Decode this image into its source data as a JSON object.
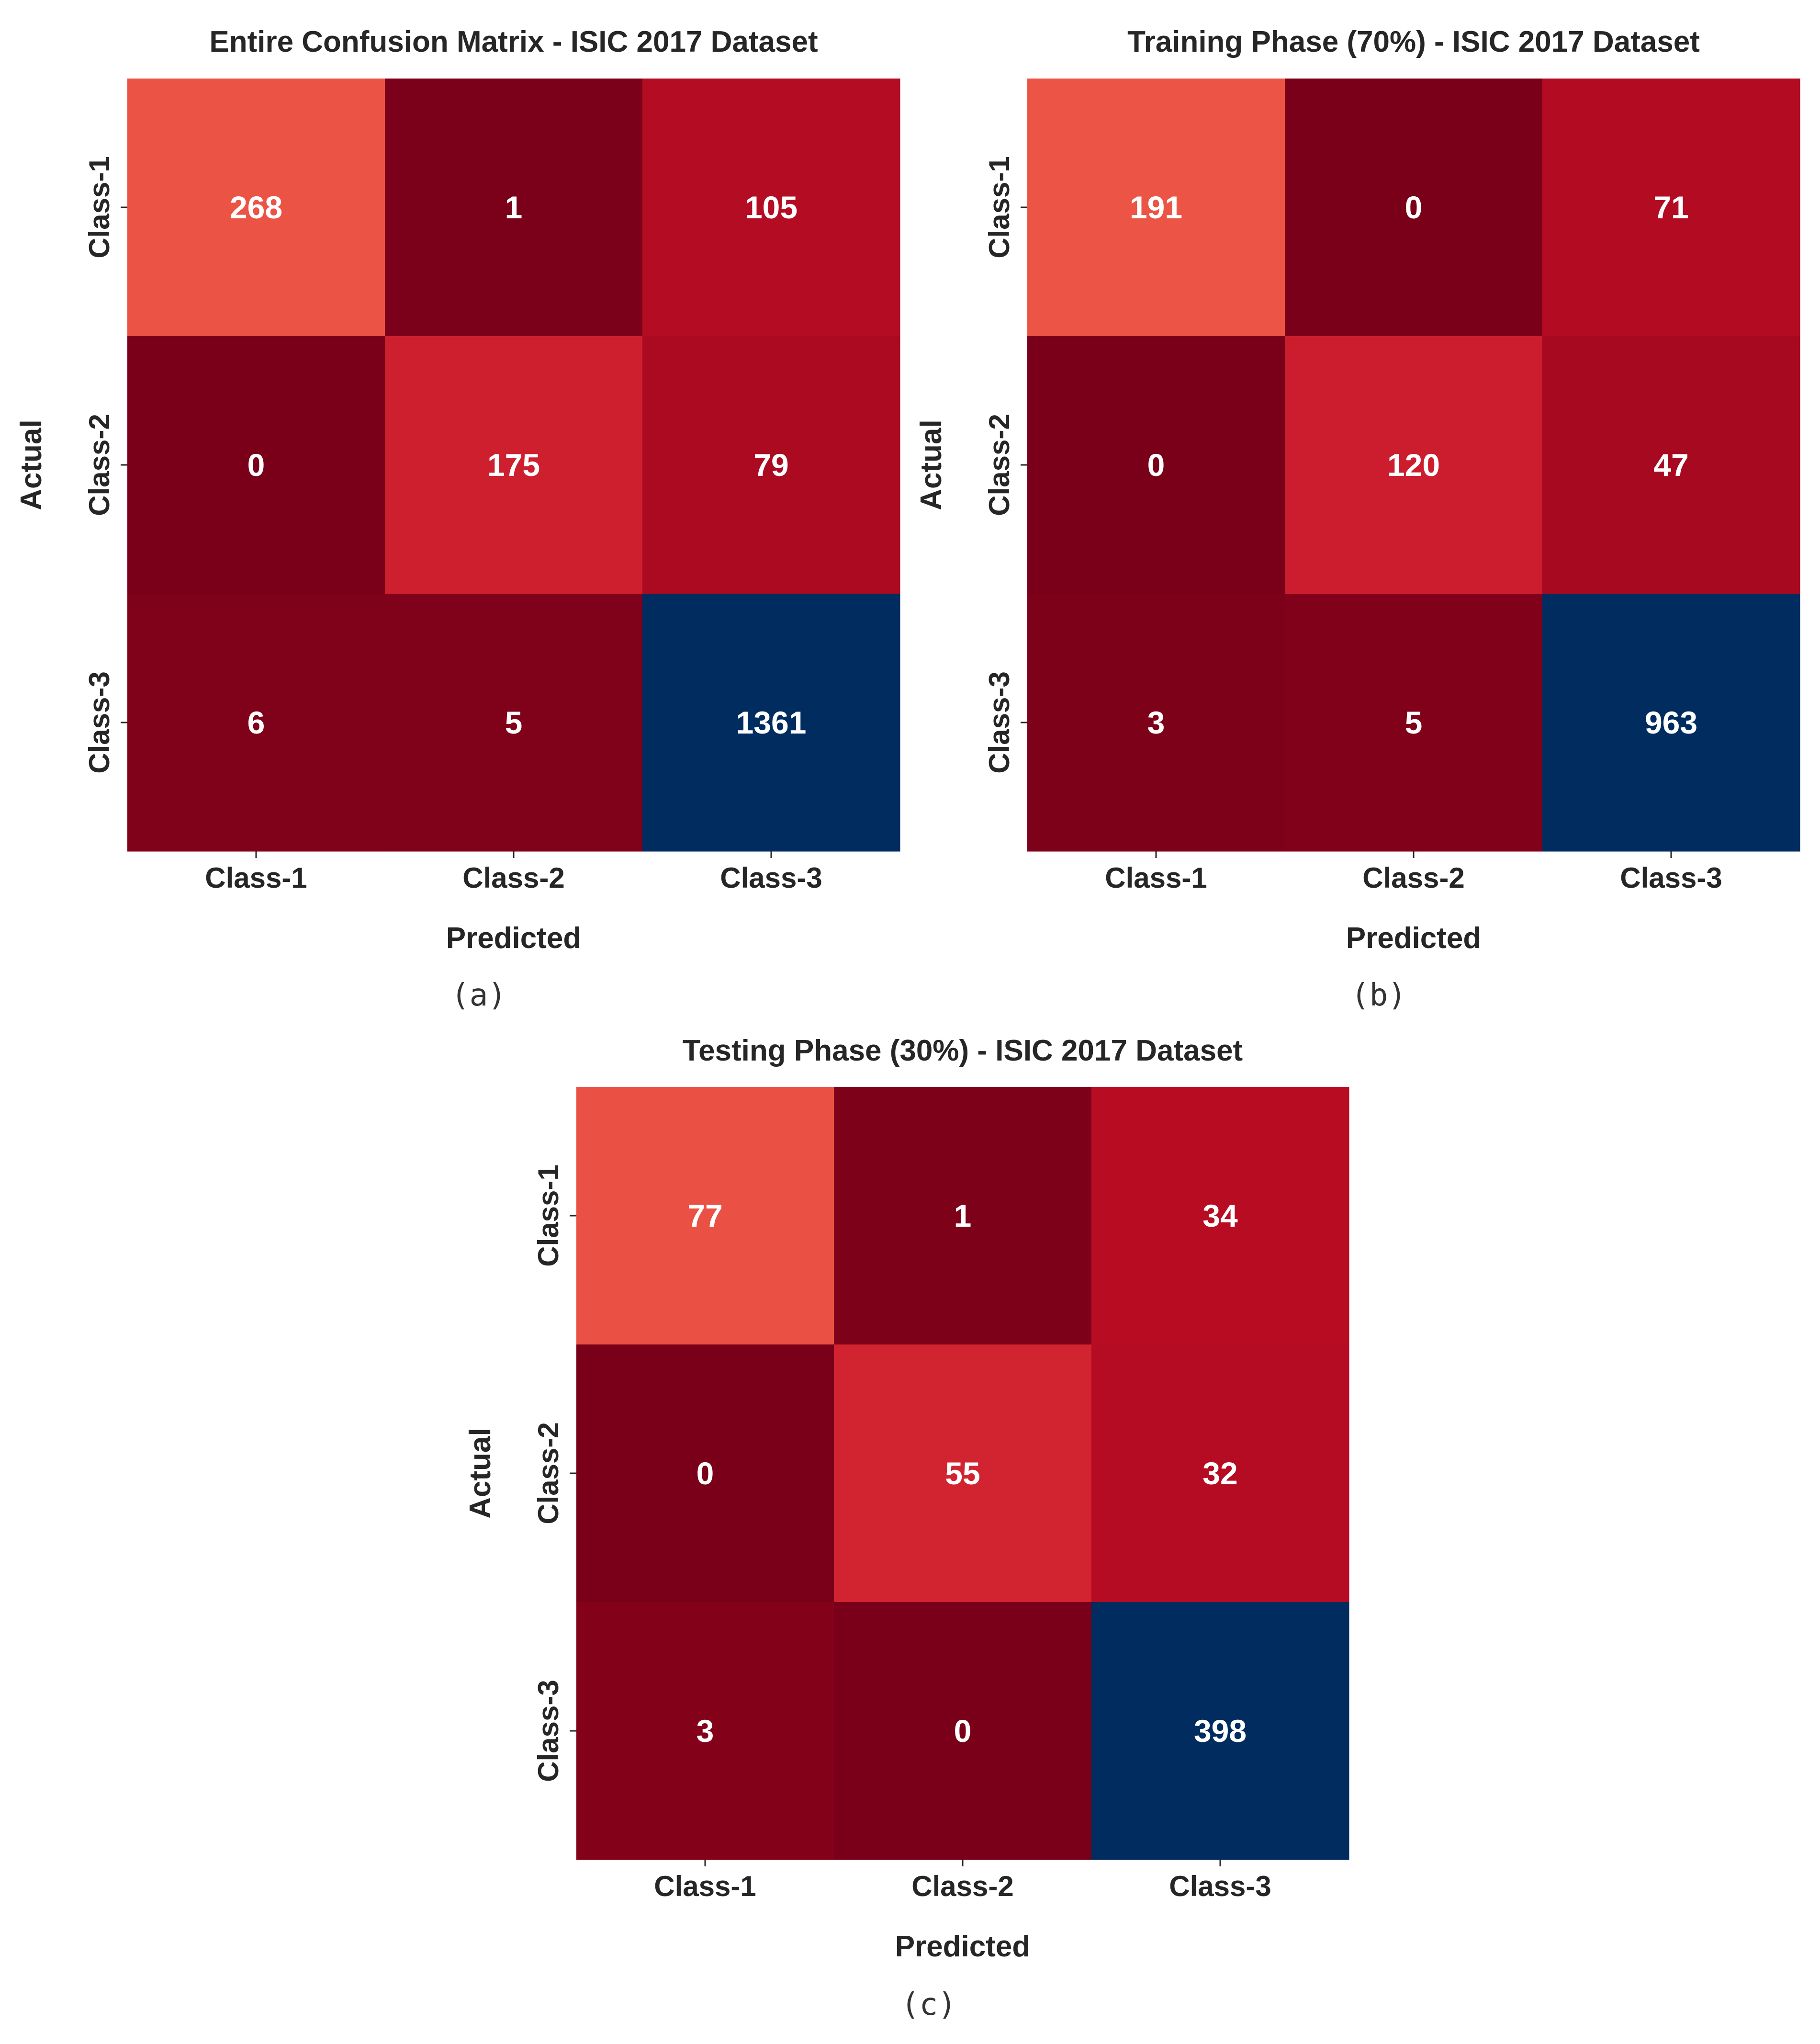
{
  "colors": {
    "high": "#002c5f",
    "text": "#262626",
    "cell_text": "#ffffff",
    "background": "#ffffff",
    "red_scale": [
      "#7a0019",
      "#a2081f",
      "#bb0d24",
      "#d72a33",
      "#f15e4a"
    ]
  },
  "chart_data": [
    {
      "type": "heatmap",
      "id": "a",
      "title": "Entire Confusion Matrix - ISIC 2017 Dataset",
      "xlabel": "Predicted",
      "ylabel": "Actual",
      "x_categories": [
        "Class-1",
        "Class-2",
        "Class-3"
      ],
      "y_categories": [
        "Class-1",
        "Class-2",
        "Class-3"
      ],
      "values": [
        [
          268,
          1,
          105
        ],
        [
          0,
          175,
          79
        ],
        [
          6,
          5,
          1361
        ]
      ],
      "caption": "(a)"
    },
    {
      "type": "heatmap",
      "id": "b",
      "title": "Training Phase (70%) - ISIC 2017 Dataset",
      "xlabel": "Predicted",
      "ylabel": "Actual",
      "x_categories": [
        "Class-1",
        "Class-2",
        "Class-3"
      ],
      "y_categories": [
        "Class-1",
        "Class-2",
        "Class-3"
      ],
      "values": [
        [
          191,
          0,
          71
        ],
        [
          0,
          120,
          47
        ],
        [
          3,
          5,
          963
        ]
      ],
      "caption": "(b)"
    },
    {
      "type": "heatmap",
      "id": "c",
      "title": "Testing Phase (30%) - ISIC 2017 Dataset",
      "xlabel": "Predicted",
      "ylabel": "Actual",
      "x_categories": [
        "Class-1",
        "Class-2",
        "Class-3"
      ],
      "y_categories": [
        "Class-1",
        "Class-2",
        "Class-3"
      ],
      "values": [
        [
          77,
          1,
          34
        ],
        [
          0,
          55,
          32
        ],
        [
          3,
          0,
          398
        ]
      ],
      "caption": "(c)"
    }
  ]
}
